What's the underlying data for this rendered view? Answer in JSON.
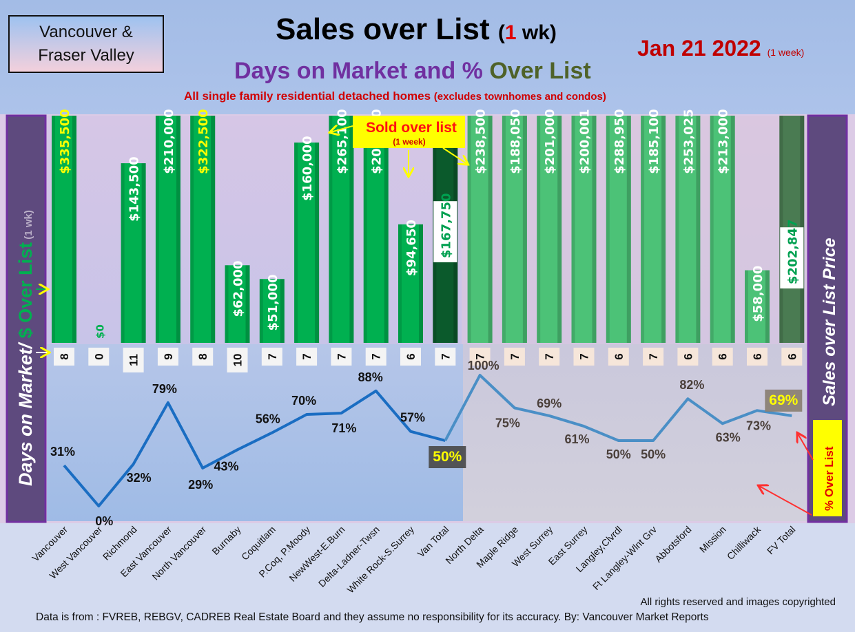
{
  "header": {
    "region_line1": "Vancouver &",
    "region_line2": "Fraser Valley",
    "title_main": "Sales over List",
    "title_paren_open": "(",
    "title_num": "1",
    "title_paren_close": " wk)",
    "subtitle_a": "Days on Market and % ",
    "subtitle_b": "Over List",
    "note_main": "All single family residential detached homes ",
    "note_small": "(excludes townhomes and condos)",
    "date": "Jan 21  2022",
    "date_small": "(1 week)"
  },
  "chart_data": {
    "type": "bar+line",
    "title": "Sales over List (1 wk)",
    "categories": [
      "Vancouver",
      "West Vancouver",
      "Richmond",
      "East Vancouver",
      "North Vancouver",
      "Burnaby",
      "Coquitlam",
      "P.Coq, P.Moody",
      "NewWest-E.Burn",
      "Delta-Ladner-Twsn",
      "White Rock-S.Surrey",
      "Van Total",
      "North Delta",
      "Maple Ridge",
      "West Surrey",
      "East Surrey",
      "Langley,Clvrdl",
      "Ft Langley-Wlnt Grv",
      "Abbotsford",
      "Mission",
      "Chilliwack",
      "FV Total"
    ],
    "series": [
      {
        "name": "$ Over List (1 wk)",
        "type": "bar",
        "values": [
          335500,
          0,
          143500,
          210000,
          322500,
          62000,
          51000,
          160000,
          265100,
          201000,
          94650,
          167750,
          238500,
          188050,
          201000,
          200001,
          288950,
          185100,
          253025,
          213000,
          58000,
          202847
        ],
        "labels": [
          "$335,500",
          "$0",
          "$143,500",
          "$210,000",
          "$322,500",
          "$62,000",
          "$51,000",
          "$160,000",
          "$265,100",
          "$201,000",
          "$94,650",
          "$167,750",
          "$238,500",
          "$188,050",
          "$201,000",
          "$200,001",
          "$288,950",
          "$185,100",
          "$253,025",
          "$213,000",
          "$58,000",
          "$202,847"
        ]
      },
      {
        "name": "Days on Market",
        "type": "label",
        "values": [
          8,
          0,
          11,
          9,
          8,
          10,
          7,
          7,
          7,
          7,
          6,
          7,
          7,
          7,
          7,
          7,
          6,
          7,
          6,
          6,
          6,
          6
        ]
      },
      {
        "name": "% Over List",
        "type": "line",
        "values": [
          31,
          0,
          32,
          79,
          29,
          43,
          56,
          70,
          71,
          88,
          57,
          50,
          100,
          75,
          69,
          61,
          50,
          50,
          82,
          63,
          73,
          69
        ],
        "labels": [
          "31%",
          "0%",
          "32%",
          "79%",
          "29%",
          "43%",
          "56%",
          "70%",
          "71%",
          "88%",
          "57%",
          "50%",
          "100%",
          "75%",
          "69%",
          "61%",
          "50%",
          "50%",
          "82%",
          "63%",
          "73%",
          "69%"
        ]
      }
    ],
    "ylabel_left_a": "Days on Market/ ",
    "ylabel_left_b": "$ Over List",
    "ylabel_left_c": " (1 wk)",
    "ylabel_right": "Sales over List Price",
    "pct_legend": "% Over List",
    "callout_main": "Sold over list",
    "callout_sub": "(1 week)",
    "colors": {
      "van_bar": "#00b050",
      "van_total": "#0b5a2c",
      "fv_bar": "#4cc277",
      "fv_total": "#4a7b52",
      "van_line": "#1a6dc2",
      "fv_line": "#4a8fc6"
    }
  },
  "footer": {
    "rights": "All rights reserved and  images copyrighted",
    "source": "Data is from : FVREB, REBGV, CADREB Real Estate Board and they assume no responsibility for its accuracy. By: Vancouver Market Reports"
  }
}
